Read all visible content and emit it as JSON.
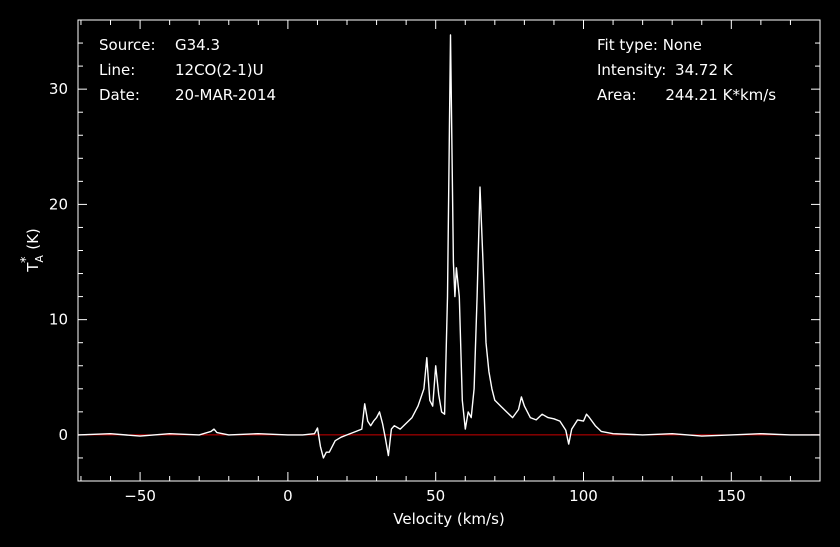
{
  "header": {
    "source_label": "Source:",
    "source_value": "G34.3",
    "line_label": "Line:",
    "line_value": "12CO(2-1)U",
    "date_label": "Date:",
    "date_value": "20-MAR-2014",
    "fit_label": "Fit type:",
    "fit_value": "None",
    "intensity_label": "Intensity:",
    "intensity_value": "34.72 K",
    "area_label": "Area:",
    "area_value": "244.21 K*km/s"
  },
  "colors": {
    "background": "#000000",
    "axes": "#ffffff",
    "spectrum": "#ffffff",
    "baseline": "#cc0000"
  },
  "chart_data": {
    "type": "line",
    "xlabel": "Velocity (km/s)",
    "ylabel": "T_A* (K)",
    "xlim": [
      -71,
      180
    ],
    "ylim": [
      -4,
      36
    ],
    "xticks": [
      -50,
      0,
      50,
      100,
      150
    ],
    "yticks": [
      0,
      10,
      20,
      30
    ],
    "baseline": 0,
    "series": [
      {
        "x": [
          -71,
          -60,
          -50,
          -40,
          -30,
          -26,
          -25,
          -24,
          -20,
          -10,
          0,
          5,
          9,
          10,
          11,
          12,
          13,
          14,
          16,
          18,
          20,
          22,
          25,
          26,
          27,
          28,
          29,
          30,
          31,
          32,
          33,
          34,
          35,
          36,
          38,
          40,
          42,
          44,
          46,
          47,
          48,
          49,
          50,
          51,
          52,
          53,
          54,
          55,
          56,
          56.5,
          57,
          58,
          59,
          60,
          61,
          62,
          63,
          64,
          65,
          66,
          67,
          68,
          69,
          70,
          72,
          74,
          76,
          78,
          79,
          80,
          82,
          84,
          86,
          88,
          90,
          92,
          94,
          95,
          96,
          98,
          100,
          101,
          102,
          104,
          106,
          110,
          120,
          130,
          140,
          150,
          160,
          170,
          180
        ],
        "y": [
          0,
          0.1,
          -0.1,
          0.1,
          0,
          0.3,
          0.5,
          0.2,
          0,
          0.1,
          0,
          0,
          0.1,
          0.6,
          -1,
          -2,
          -1.5,
          -1.5,
          -0.5,
          -0.2,
          0,
          0.2,
          0.5,
          2.7,
          1.2,
          0.8,
          1.2,
          1.5,
          2,
          1,
          -0.3,
          -1.8,
          0.5,
          0.8,
          0.5,
          1,
          1.5,
          2.5,
          4,
          6.7,
          3,
          2.5,
          6,
          3.5,
          2,
          1.8,
          12,
          34.7,
          15,
          12,
          14.5,
          12,
          3,
          0.5,
          2,
          1.5,
          4,
          12,
          21.5,
          15,
          8,
          5.5,
          4,
          3,
          2.5,
          2,
          1.5,
          2.2,
          3.3,
          2.5,
          1.5,
          1.3,
          1.8,
          1.5,
          1.4,
          1.2,
          0.4,
          -0.8,
          0.5,
          1.3,
          1.2,
          1.8,
          1.5,
          0.8,
          0.3,
          0.1,
          0,
          0.1,
          -0.1,
          0,
          0.1,
          0,
          0
        ]
      }
    ]
  }
}
